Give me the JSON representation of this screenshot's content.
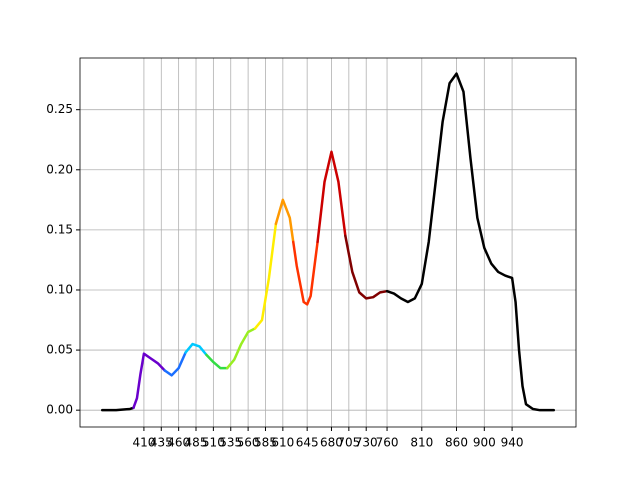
{
  "chart_data": {
    "type": "line",
    "xlim": [
      318,
      1032
    ],
    "ylim": [
      -0.014,
      0.293
    ],
    "xticks": [
      410,
      435,
      460,
      485,
      510,
      535,
      560,
      585,
      610,
      645,
      680,
      705,
      730,
      760,
      810,
      860,
      900,
      940
    ],
    "yticks": [
      {
        "value": 0,
        "label": "0.00"
      },
      {
        "value": 0.05,
        "label": "0.05"
      },
      {
        "value": 0.1,
        "label": "0.10"
      },
      {
        "value": 0.15,
        "label": "0.15"
      },
      {
        "value": 0.2,
        "label": "0.20"
      },
      {
        "value": 0.25,
        "label": "0.25"
      }
    ],
    "grid": true,
    "series": [
      {
        "color": "#000000",
        "x": [
          350,
          370,
          390,
          395
        ],
        "values": [
          0,
          0,
          0.001,
          0.002
        ]
      },
      {
        "color": "#6a00cc",
        "x": [
          395,
          400,
          405,
          410,
          420,
          430,
          440
        ],
        "values": [
          0.002,
          0.01,
          0.03,
          0.047,
          0.043,
          0.039,
          0.033
        ]
      },
      {
        "color": "#1a6fff",
        "x": [
          440,
          450,
          460,
          470
        ],
        "values": [
          0.033,
          0.029,
          0.035,
          0.048
        ]
      },
      {
        "color": "#00c8ff",
        "x": [
          470,
          480,
          490,
          500
        ],
        "values": [
          0.048,
          0.055,
          0.053,
          0.046
        ]
      },
      {
        "color": "#33dd44",
        "x": [
          500,
          510,
          520,
          530
        ],
        "values": [
          0.046,
          0.04,
          0.035,
          0.035
        ]
      },
      {
        "color": "#99ee22",
        "x": [
          530,
          540,
          550,
          560,
          570
        ],
        "values": [
          0.035,
          0.042,
          0.055,
          0.065,
          0.068
        ]
      },
      {
        "color": "#ffee00",
        "x": [
          570,
          580,
          590,
          600
        ],
        "values": [
          0.068,
          0.075,
          0.11,
          0.155
        ]
      },
      {
        "color": "#ff9900",
        "x": [
          600,
          610,
          620,
          625
        ],
        "values": [
          0.155,
          0.175,
          0.16,
          0.14
        ]
      },
      {
        "color": "#ff3300",
        "x": [
          625,
          630,
          640,
          645,
          650,
          660
        ],
        "values": [
          0.14,
          0.12,
          0.09,
          0.088,
          0.095,
          0.14
        ]
      },
      {
        "color": "#cc0000",
        "x": [
          660,
          670,
          680,
          690,
          700
        ],
        "values": [
          0.14,
          0.19,
          0.215,
          0.19,
          0.145
        ]
      },
      {
        "color": "#800000",
        "x": [
          700,
          710,
          720,
          730,
          740,
          750,
          760
        ],
        "values": [
          0.145,
          0.115,
          0.098,
          0.093,
          0.094,
          0.098,
          0.099
        ]
      },
      {
        "color": "#000000",
        "x": [
          760,
          770,
          780,
          790,
          800,
          810,
          820,
          830,
          840,
          850,
          860,
          870,
          880,
          890,
          900,
          910,
          920,
          930,
          940,
          945,
          950,
          955,
          960,
          970,
          980,
          1000
        ],
        "values": [
          0.099,
          0.097,
          0.093,
          0.09,
          0.093,
          0.105,
          0.14,
          0.19,
          0.24,
          0.272,
          0.28,
          0.265,
          0.21,
          0.16,
          0.135,
          0.122,
          0.115,
          0.112,
          0.11,
          0.09,
          0.05,
          0.02,
          0.005,
          0.001,
          0,
          0
        ]
      }
    ]
  }
}
